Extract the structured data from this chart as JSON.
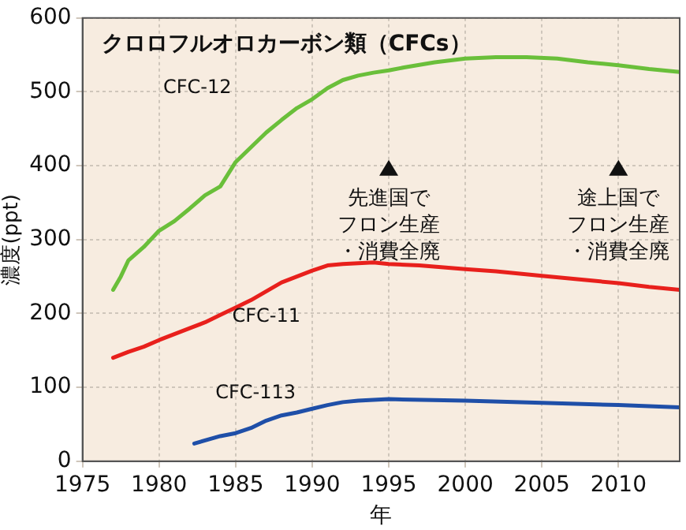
{
  "chart_data": {
    "type": "line",
    "title": "クロロフルオロカーボン類（CFCs）",
    "xlabel": "年",
    "ylabel": "濃度(ppt)",
    "xlim": [
      1975,
      2014
    ],
    "xticks": [
      1975,
      1980,
      1985,
      1990,
      1995,
      2000,
      2005,
      2010
    ],
    "ylim": [
      0,
      600
    ],
    "yticks": [
      0,
      100,
      200,
      300,
      400,
      500,
      600
    ],
    "grid": true,
    "legend": false,
    "marker": "none",
    "line_style": "solid",
    "series": [
      {
        "name": "CFC-12",
        "color": "#6abf3a",
        "x": [
          1977,
          1977.5,
          1978,
          1979,
          1980,
          1981,
          1982,
          1983,
          1984,
          1985,
          1986,
          1987,
          1988,
          1989,
          1990,
          1991,
          1992,
          1993,
          1994,
          1995,
          1996,
          1998,
          2000,
          2002,
          2004,
          2006,
          2008,
          2010,
          2012,
          2014
        ],
        "values": [
          232,
          250,
          272,
          290,
          312,
          325,
          342,
          360,
          372,
          405,
          425,
          445,
          462,
          478,
          490,
          505,
          516,
          522,
          526,
          529,
          533,
          540,
          545,
          547,
          547,
          545,
          540,
          536,
          531,
          527
        ]
      },
      {
        "name": "CFC-11",
        "color": "#e8201c",
        "x": [
          1977,
          1978,
          1979,
          1980,
          1981,
          1982,
          1983,
          1984,
          1985,
          1986,
          1987,
          1988,
          1989,
          1990,
          1991,
          1992,
          1993,
          1994,
          1995,
          1997,
          2000,
          2002,
          2005,
          2008,
          2010,
          2012,
          2014
        ],
        "values": [
          140,
          148,
          155,
          164,
          172,
          180,
          188,
          198,
          208,
          218,
          230,
          242,
          250,
          258,
          265,
          267,
          268,
          269,
          267,
          265,
          260,
          257,
          251,
          245,
          241,
          236,
          232
        ]
      },
      {
        "name": "CFC-113",
        "color": "#1f4fa8",
        "x": [
          1982.3,
          1984,
          1985,
          1986,
          1987,
          1988,
          1989,
          1990,
          1991,
          1992,
          1993,
          1995,
          2000,
          2005,
          2010,
          2014
        ],
        "values": [
          24,
          34,
          38,
          45,
          55,
          62,
          66,
          71,
          76,
          80,
          82,
          84,
          82,
          79,
          76,
          73
        ]
      }
    ],
    "annotations": [
      {
        "text": "先進国でフロン生産・消費全廃",
        "x": 1995,
        "y": 395
      },
      {
        "text": "途上国でフロン生産・消費全廃",
        "x": 2010,
        "y": 395
      }
    ]
  }
}
